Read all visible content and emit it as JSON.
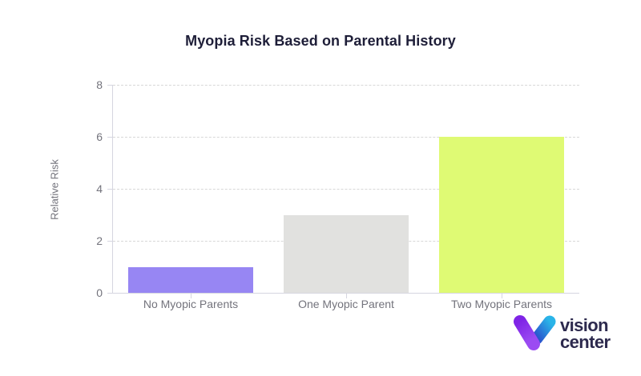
{
  "chart_data": {
    "type": "bar",
    "title": "Myopia Risk Based on Parental History",
    "categories": [
      "No Myopic Parents",
      "One Myopic Parent",
      "Two Myopic Parents"
    ],
    "values": [
      1,
      3,
      6
    ],
    "bar_colors": [
      "#9786F3",
      "#E1E1DF",
      "#DFFA74"
    ],
    "xlabel": "",
    "ylabel": "Relative Risk",
    "ylim": [
      0,
      8
    ],
    "yticks": [
      0,
      2,
      4,
      6,
      8
    ],
    "grid": "horizontal-dashed",
    "legend": "none",
    "colors": {
      "grid": "#D7D7D7",
      "axis": "#D6D6E0",
      "tick_text": "#73737C",
      "title_text": "#1E1E38"
    }
  },
  "logo": {
    "name": "Vision Center",
    "line1": "vision",
    "line2": "center",
    "colors": {
      "text": "#2D2A4E",
      "icon_purple_top": "#7F24E6",
      "icon_purple_bottom": "#9B4BF2",
      "icon_blue_top": "#2AB4E8",
      "icon_blue_bottom": "#2A50CC"
    }
  }
}
